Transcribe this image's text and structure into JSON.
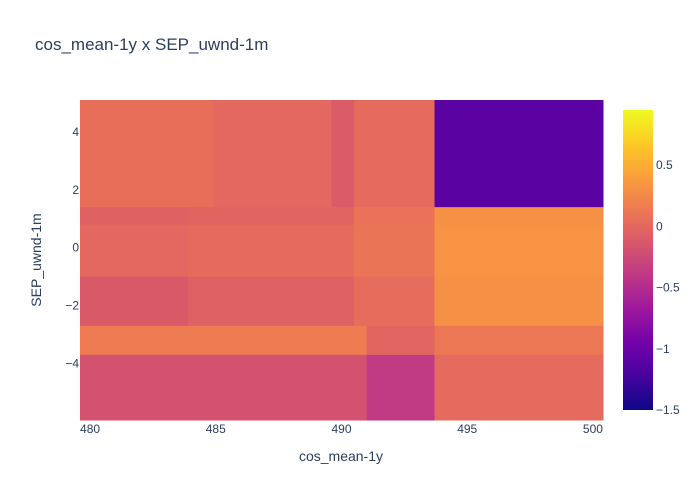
{
  "chart_data": {
    "type": "heatmap",
    "title": "cos_mean-1y x SEP_uwnd-1m",
    "xlabel": "cos_mean-1y",
    "ylabel": "SEP_uwnd-1m",
    "xlim": [
      479.6,
      500.4
    ],
    "ylim": [
      -5.95,
      5.1
    ],
    "x_ticks": [
      480,
      485,
      490,
      495,
      500
    ],
    "x_tick_labels": [
      "480",
      "485",
      "490",
      "495",
      "500"
    ],
    "y_ticks": [
      4,
      2,
      0,
      -2,
      -4
    ],
    "y_tick_labels": [
      "4",
      "2",
      "0",
      "−2",
      "−4"
    ],
    "colorbar": {
      "range": [
        -1.5,
        0.95
      ],
      "ticks": [
        0.5,
        0,
        -0.5,
        -1,
        -1.5
      ],
      "tick_labels": [
        "0.5",
        "0",
        "−0.5",
        "−1",
        "−1.5"
      ],
      "colorscale": [
        "#0d0887",
        "#46039f",
        "#7201a8",
        "#9c179e",
        "#bd3786",
        "#d8576b",
        "#ed7953",
        "#fb9f3a",
        "#fdca26",
        "#f0f921"
      ]
    },
    "cells": [
      {
        "x0": 479.6,
        "x1": 484.9,
        "y0": 1.4,
        "y1": 5.1,
        "value": 0.05
      },
      {
        "x0": 484.9,
        "x1": 489.6,
        "y0": 1.4,
        "y1": 5.1,
        "value": 0.0
      },
      {
        "x0": 489.6,
        "x1": 490.5,
        "y0": 1.4,
        "y1": 5.1,
        "value": -0.1
      },
      {
        "x0": 490.5,
        "x1": 493.7,
        "y0": 1.4,
        "y1": 5.1,
        "value": 0.03
      },
      {
        "x0": 493.7,
        "x1": 500.4,
        "y0": 1.4,
        "y1": 5.1,
        "value": -1.1
      },
      {
        "x0": 479.6,
        "x1": 483.9,
        "y0": 0.8,
        "y1": 1.4,
        "value": -0.05
      },
      {
        "x0": 483.9,
        "x1": 490.5,
        "y0": 0.8,
        "y1": 1.4,
        "value": -0.03
      },
      {
        "x0": 490.5,
        "x1": 493.7,
        "y0": 0.8,
        "y1": 1.4,
        "value": 0.08
      },
      {
        "x0": 493.7,
        "x1": 500.4,
        "y0": 0.8,
        "y1": 1.4,
        "value": 0.3
      },
      {
        "x0": 479.6,
        "x1": 483.9,
        "y0": -1.0,
        "y1": 0.8,
        "value": 0.0
      },
      {
        "x0": 483.9,
        "x1": 490.5,
        "y0": -1.0,
        "y1": 0.8,
        "value": 0.03
      },
      {
        "x0": 490.5,
        "x1": 493.7,
        "y0": -1.0,
        "y1": 0.8,
        "value": 0.1
      },
      {
        "x0": 493.7,
        "x1": 500.4,
        "y0": -1.0,
        "y1": 0.8,
        "value": 0.32
      },
      {
        "x0": 479.6,
        "x1": 483.9,
        "y0": -2.7,
        "y1": -1.0,
        "value": -0.12
      },
      {
        "x0": 483.9,
        "x1": 490.5,
        "y0": -2.7,
        "y1": -1.0,
        "value": -0.06
      },
      {
        "x0": 490.5,
        "x1": 493.7,
        "y0": -2.7,
        "y1": -1.0,
        "value": 0.04
      },
      {
        "x0": 493.7,
        "x1": 500.4,
        "y0": -2.7,
        "y1": -1.0,
        "value": 0.3
      },
      {
        "x0": 479.6,
        "x1": 491.0,
        "y0": -3.7,
        "y1": -2.7,
        "value": 0.15
      },
      {
        "x0": 491.0,
        "x1": 493.7,
        "y0": -3.7,
        "y1": -2.7,
        "value": -0.02
      },
      {
        "x0": 493.7,
        "x1": 500.4,
        "y0": -3.7,
        "y1": -2.7,
        "value": 0.12
      },
      {
        "x0": 479.6,
        "x1": 491.0,
        "y0": -5.95,
        "y1": -3.7,
        "value": -0.18
      },
      {
        "x0": 491.0,
        "x1": 493.7,
        "y0": -5.95,
        "y1": -3.7,
        "value": -0.38
      },
      {
        "x0": 493.7,
        "x1": 500.4,
        "y0": -5.95,
        "y1": -3.7,
        "value": 0.02
      }
    ]
  }
}
